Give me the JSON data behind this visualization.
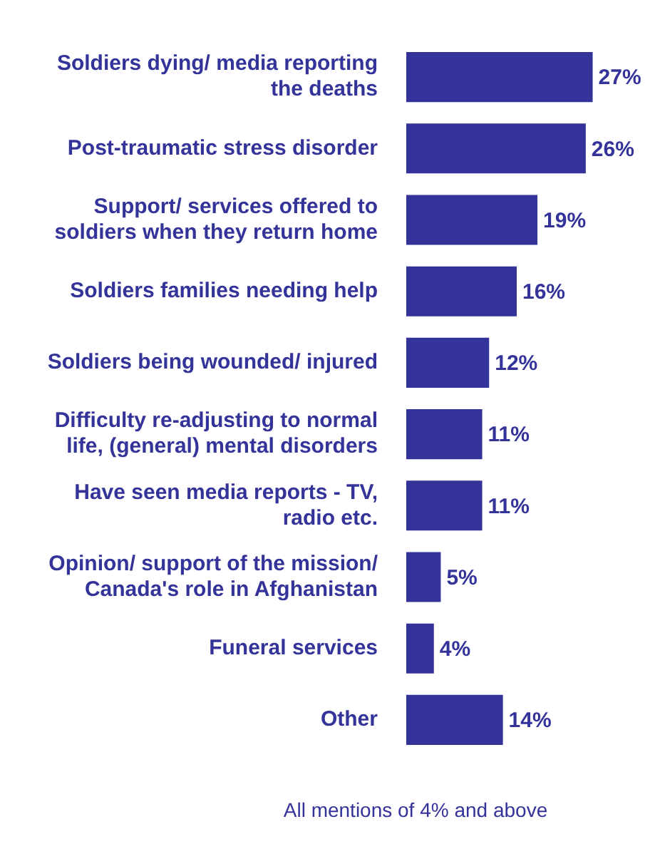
{
  "chart_data": {
    "type": "bar",
    "orientation": "horizontal",
    "categories": [
      "Soldiers dying/ media reporting the deaths",
      "Post-traumatic stress disorder",
      "Support/ services offered to soldiers when they return home",
      "Soldiers families needing help",
      "Soldiers being wounded/ injured",
      "Difficulty re-adjusting to normal life, (general) mental disorders",
      "Have seen media reports - TV, radio etc.",
      "Opinion/ support of the mission/ Canada's role in Afghanistan",
      "Funeral services",
      "Other"
    ],
    "values": [
      27,
      26,
      19,
      16,
      12,
      11,
      11,
      5,
      4,
      14
    ],
    "value_labels": [
      "27%",
      "26%",
      "19%",
      "16%",
      "12%",
      "11%",
      "11%",
      "5%",
      "4%",
      "14%"
    ],
    "color": "#333399",
    "annotations": [
      "All mentions of 4% and above"
    ],
    "legend": false
  }
}
